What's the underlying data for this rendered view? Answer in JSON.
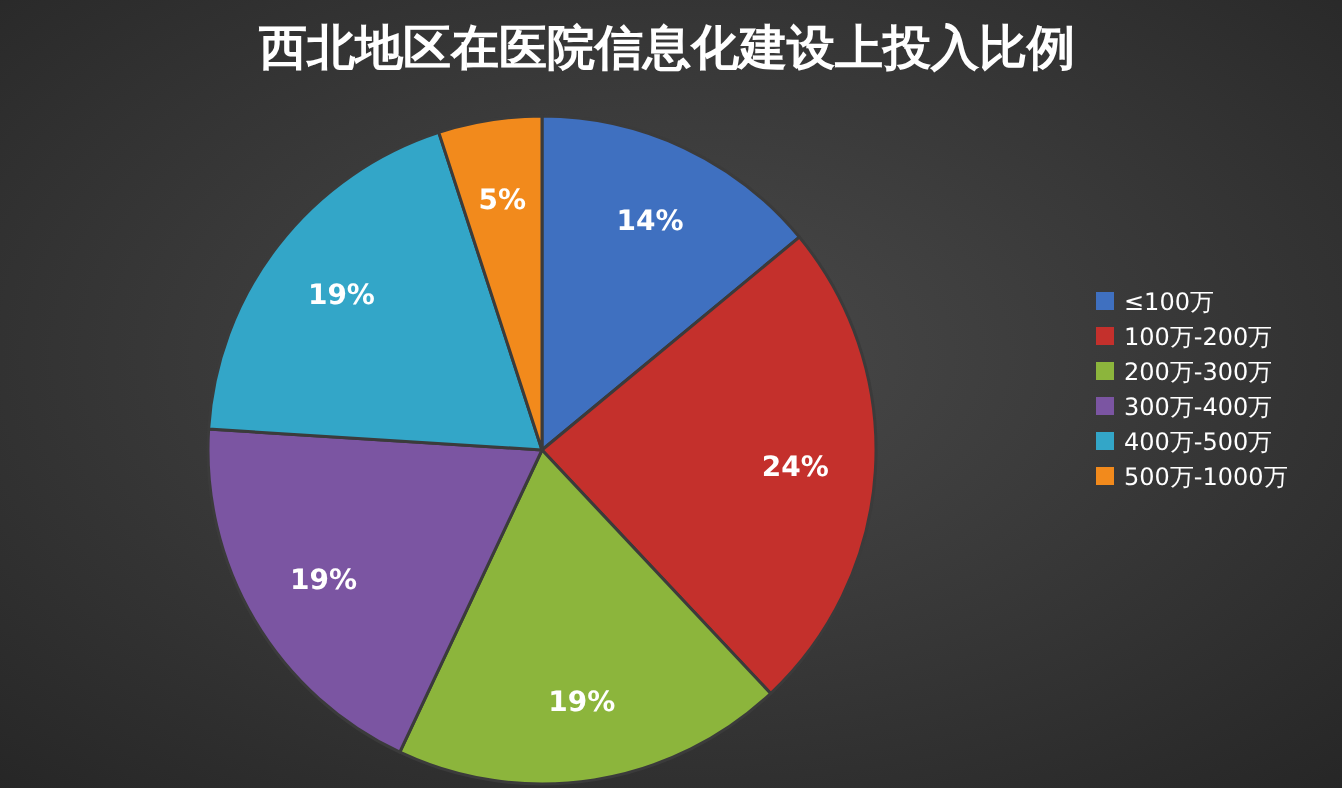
{
  "chart_data": {
    "type": "pie",
    "title": "西北地区在医院信息化建设上投入比例",
    "categories": [
      "≤100万",
      "100万-200万",
      "200万-300万",
      "300万-400万",
      "400万-500万",
      "500万-1000万"
    ],
    "values": [
      14,
      24,
      19,
      19,
      19,
      5
    ],
    "colors": [
      "#3f70c0",
      "#c4302c",
      "#8cb53c",
      "#7b55a2",
      "#33a6c8",
      "#f28a1c"
    ],
    "value_labels": [
      "14%",
      "24%",
      "19%",
      "19%",
      "19%",
      "5%"
    ],
    "legend": "right"
  }
}
